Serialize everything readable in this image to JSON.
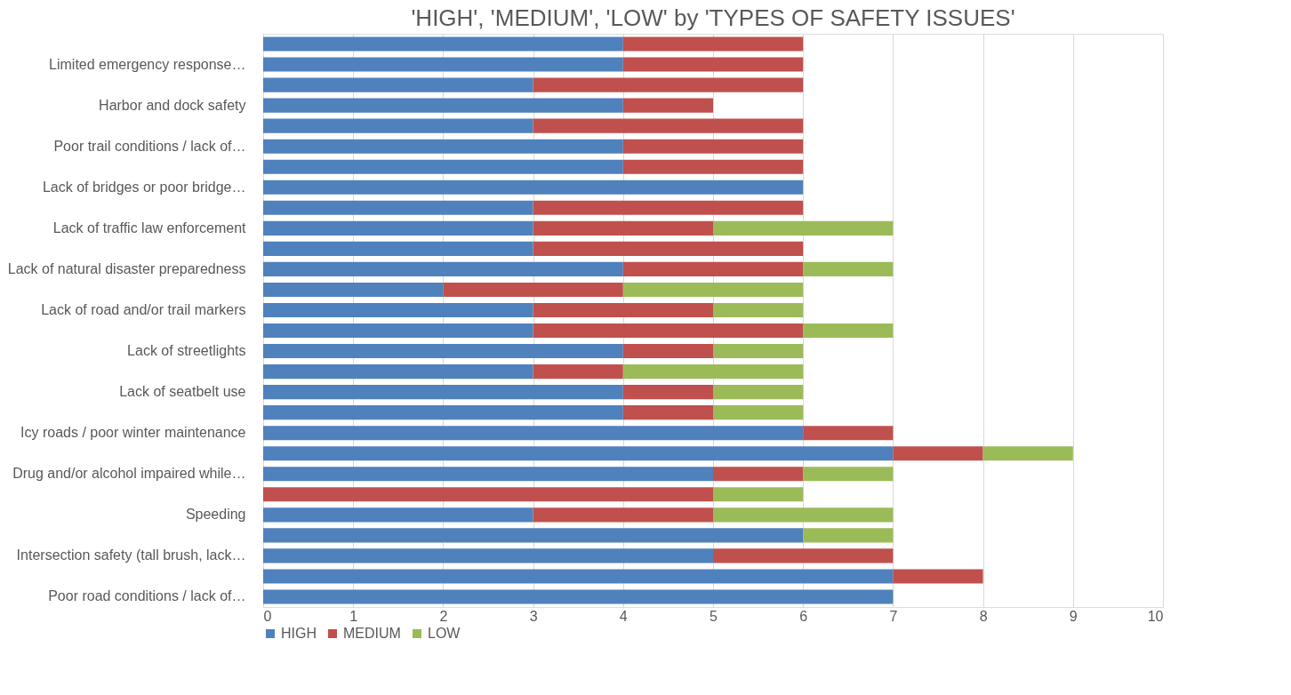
{
  "chart_data": {
    "type": "bar",
    "orientation": "horizontal",
    "stacked": true,
    "title": "'HIGH', 'MEDIUM', 'LOW' by 'TYPES OF SAFETY ISSUES'",
    "categories": [
      null,
      "Limited emergency response…",
      null,
      "Harbor and dock safety",
      null,
      "Poor trail conditions / lack of…",
      null,
      "Lack of bridges or poor bridge…",
      null,
      "Lack of traffic law enforcement",
      null,
      "Lack of natural disaster preparedness",
      null,
      "Lack of road and/or trail markers",
      null,
      "Lack of streetlights",
      null,
      "Lack of seatbelt use",
      null,
      "Icy roads / poor winter maintenance",
      null,
      "Drug and/or alcohol impaired while…",
      null,
      "Speeding",
      null,
      "Intersection safety (tall brush, lack…",
      null,
      "Poor road conditions / lack of…"
    ],
    "series": [
      {
        "name": "HIGH",
        "color": "#4f81bd",
        "values": [
          4,
          4,
          3,
          4,
          3,
          4,
          4,
          6,
          3,
          3,
          3,
          4,
          2,
          3,
          3,
          4,
          3,
          4,
          4,
          6,
          7,
          5,
          0,
          3,
          6,
          5,
          7,
          7
        ]
      },
      {
        "name": "MEDIUM",
        "color": "#c0504d",
        "values": [
          2,
          2,
          3,
          1,
          3,
          2,
          2,
          0,
          3,
          2,
          3,
          2,
          2,
          2,
          3,
          1,
          1,
          1,
          1,
          1,
          1,
          1,
          5,
          2,
          0,
          2,
          1,
          0
        ]
      },
      {
        "name": "LOW",
        "color": "#9bbb59",
        "values": [
          0,
          0,
          0,
          0,
          0,
          0,
          0,
          0,
          0,
          2,
          0,
          1,
          2,
          1,
          1,
          1,
          2,
          1,
          1,
          0,
          1,
          1,
          1,
          2,
          1,
          0,
          0,
          0
        ]
      }
    ],
    "xlim": [
      0,
      10
    ],
    "xticks": [
      0,
      1,
      2,
      3,
      4,
      5,
      6,
      7,
      8,
      9,
      10
    ],
    "grid": "x",
    "legend": "bottom"
  }
}
